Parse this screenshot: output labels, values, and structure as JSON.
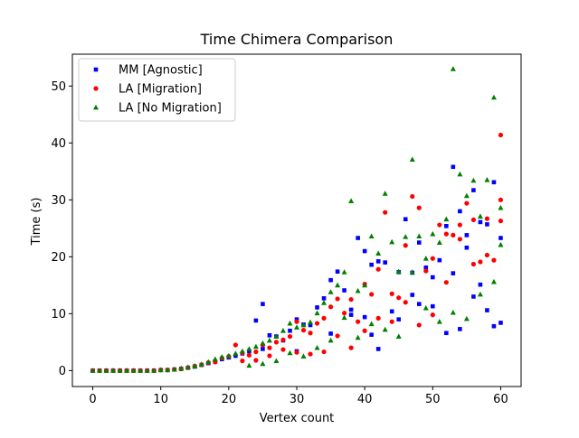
{
  "chart_data": {
    "type": "scatter",
    "title": "Time Chimera Comparison",
    "xlabel": "Vertex count",
    "ylabel": "Time (s)",
    "xlim": [
      -3,
      63
    ],
    "ylim": [
      -2.8,
      55.6
    ],
    "xticks": [
      0,
      10,
      20,
      30,
      40,
      50,
      60
    ],
    "yticks": [
      0,
      10,
      20,
      30,
      40,
      50
    ],
    "grid": false,
    "legend_position": "top-left",
    "series": [
      {
        "name": "MM [Agnostic]",
        "color": "#0000ff",
        "marker": "square",
        "points": [
          [
            0,
            0.0
          ],
          [
            1,
            0.0
          ],
          [
            2,
            0.0
          ],
          [
            3,
            0.0
          ],
          [
            4,
            0.0
          ],
          [
            5,
            0.0
          ],
          [
            6,
            0.0
          ],
          [
            7,
            0.0
          ],
          [
            8,
            0.0
          ],
          [
            9,
            0.0
          ],
          [
            10,
            0.1
          ],
          [
            11,
            0.1
          ],
          [
            12,
            0.2
          ],
          [
            13,
            0.3
          ],
          [
            14,
            0.5
          ],
          [
            15,
            0.7
          ],
          [
            16,
            1.0
          ],
          [
            17,
            1.3
          ],
          [
            18,
            1.6
          ],
          [
            19,
            2.0
          ],
          [
            20,
            2.3
          ],
          [
            21,
            2.6
          ],
          [
            22,
            3.0
          ],
          [
            23,
            3.4
          ],
          [
            24,
            8.8
          ],
          [
            25,
            11.7
          ],
          [
            26,
            6.2
          ],
          [
            27,
            6.0
          ],
          [
            28,
            5.3
          ],
          [
            29,
            7.0
          ],
          [
            30,
            9.0
          ],
          [
            31,
            8.1
          ],
          [
            32,
            8.0
          ],
          [
            33,
            11.1
          ],
          [
            34,
            12.7
          ],
          [
            35,
            15.9
          ],
          [
            36,
            17.4
          ],
          [
            37,
            14.1
          ],
          [
            38,
            10.7
          ],
          [
            39,
            23.3
          ],
          [
            40,
            21.0
          ],
          [
            41,
            18.6
          ],
          [
            42,
            19.2
          ],
          [
            43,
            19.0
          ],
          [
            44,
            10.4
          ],
          [
            45,
            17.3
          ],
          [
            46,
            26.6
          ],
          [
            47,
            17.2
          ],
          [
            48,
            22.5
          ],
          [
            49,
            18.1
          ],
          [
            50,
            16.4
          ],
          [
            51,
            19.4
          ],
          [
            52,
            25.4
          ],
          [
            53,
            35.8
          ],
          [
            54,
            28.0
          ],
          [
            55,
            23.8
          ],
          [
            56,
            31.7
          ],
          [
            57,
            26.1
          ],
          [
            58,
            25.7
          ],
          [
            59,
            33.1
          ],
          [
            60,
            23.3
          ],
          [
            25,
            3.8
          ],
          [
            30,
            3.4
          ],
          [
            35,
            6.5
          ],
          [
            38,
            9.8
          ],
          [
            40,
            9.4
          ],
          [
            42,
            3.8
          ],
          [
            45,
            9.0
          ],
          [
            48,
            11.7
          ],
          [
            50,
            11.3
          ],
          [
            52,
            6.6
          ],
          [
            54,
            7.3
          ],
          [
            56,
            13.0
          ],
          [
            58,
            10.6
          ],
          [
            59,
            7.8
          ],
          [
            60,
            8.4
          ],
          [
            57,
            15.1
          ],
          [
            55,
            21.6
          ],
          [
            53,
            17.1
          ],
          [
            47,
            13.3
          ],
          [
            41,
            6.3
          ]
        ]
      },
      {
        "name": "LA [Migration]",
        "color": "#ff0000",
        "marker": "circle",
        "points": [
          [
            0,
            0.0
          ],
          [
            1,
            0.0
          ],
          [
            2,
            0.0
          ],
          [
            3,
            0.0
          ],
          [
            4,
            0.0
          ],
          [
            5,
            0.0
          ],
          [
            6,
            0.0
          ],
          [
            7,
            0.0
          ],
          [
            8,
            0.0
          ],
          [
            9,
            0.0
          ],
          [
            10,
            0.1
          ],
          [
            11,
            0.1
          ],
          [
            12,
            0.2
          ],
          [
            13,
            0.3
          ],
          [
            14,
            0.5
          ],
          [
            15,
            0.8
          ],
          [
            16,
            1.0
          ],
          [
            17,
            1.4
          ],
          [
            18,
            1.5
          ],
          [
            19,
            2.2
          ],
          [
            20,
            2.5
          ],
          [
            21,
            4.5
          ],
          [
            22,
            3.1
          ],
          [
            23,
            2.7
          ],
          [
            24,
            3.3
          ],
          [
            25,
            4.5
          ],
          [
            26,
            4.0
          ],
          [
            27,
            5.0
          ],
          [
            28,
            5.4
          ],
          [
            29,
            6.0
          ],
          [
            30,
            8.6
          ],
          [
            31,
            7.1
          ],
          [
            32,
            6.6
          ],
          [
            33,
            8.3
          ],
          [
            34,
            9.2
          ],
          [
            35,
            11.2
          ],
          [
            36,
            12.6
          ],
          [
            37,
            10.1
          ],
          [
            38,
            12.5
          ],
          [
            39,
            8.6
          ],
          [
            40,
            15.2
          ],
          [
            41,
            13.4
          ],
          [
            42,
            17.8
          ],
          [
            43,
            27.8
          ],
          [
            44,
            13.5
          ],
          [
            45,
            12.8
          ],
          [
            46,
            22.0
          ],
          [
            47,
            30.6
          ],
          [
            48,
            28.6
          ],
          [
            49,
            17.5
          ],
          [
            50,
            19.7
          ],
          [
            51,
            25.6
          ],
          [
            52,
            24.0
          ],
          [
            53,
            23.8
          ],
          [
            54,
            25.6
          ],
          [
            55,
            29.4
          ],
          [
            56,
            26.5
          ],
          [
            57,
            19.1
          ],
          [
            58,
            26.7
          ],
          [
            59,
            19.4
          ],
          [
            60,
            41.4
          ],
          [
            60,
            30.0
          ],
          [
            60,
            26.3
          ],
          [
            58,
            20.3
          ],
          [
            56,
            18.7
          ],
          [
            54,
            23.1
          ],
          [
            52,
            15.5
          ],
          [
            50,
            9.8
          ],
          [
            48,
            8.0
          ],
          [
            46,
            12.0
          ],
          [
            44,
            8.6
          ],
          [
            42,
            9.2
          ],
          [
            40,
            7.0
          ],
          [
            38,
            4.0
          ],
          [
            36,
            6.1
          ],
          [
            34,
            3.3
          ],
          [
            32,
            2.9
          ],
          [
            30,
            3.2
          ],
          [
            28,
            3.7
          ],
          [
            26,
            2.6
          ],
          [
            24,
            1.8
          ],
          [
            22,
            1.7
          ]
        ]
      },
      {
        "name": "LA [No Migration]",
        "color": "#008000",
        "marker": "triangle",
        "points": [
          [
            0,
            0.0
          ],
          [
            1,
            0.0
          ],
          [
            2,
            0.0
          ],
          [
            3,
            0.0
          ],
          [
            4,
            0.0
          ],
          [
            5,
            0.0
          ],
          [
            6,
            0.0
          ],
          [
            7,
            0.0
          ],
          [
            8,
            0.0
          ],
          [
            9,
            0.0
          ],
          [
            10,
            0.1
          ],
          [
            11,
            0.1
          ],
          [
            12,
            0.2
          ],
          [
            13,
            0.4
          ],
          [
            14,
            0.6
          ],
          [
            15,
            0.8
          ],
          [
            16,
            1.1
          ],
          [
            17,
            1.5
          ],
          [
            18,
            2.0
          ],
          [
            19,
            2.4
          ],
          [
            20,
            2.6
          ],
          [
            21,
            3.0
          ],
          [
            22,
            3.4
          ],
          [
            23,
            3.8
          ],
          [
            24,
            4.2
          ],
          [
            25,
            4.8
          ],
          [
            26,
            5.3
          ],
          [
            27,
            6.0
          ],
          [
            28,
            7.0
          ],
          [
            29,
            8.3
          ],
          [
            30,
            7.6
          ],
          [
            31,
            8.0
          ],
          [
            32,
            8.5
          ],
          [
            33,
            10.1
          ],
          [
            34,
            11.9
          ],
          [
            35,
            13.8
          ],
          [
            36,
            15.0
          ],
          [
            37,
            17.3
          ],
          [
            38,
            29.8
          ],
          [
            39,
            14.0
          ],
          [
            40,
            15.0
          ],
          [
            41,
            23.6
          ],
          [
            42,
            20.6
          ],
          [
            43,
            31.1
          ],
          [
            44,
            22.6
          ],
          [
            45,
            17.4
          ],
          [
            46,
            23.5
          ],
          [
            47,
            37.1
          ],
          [
            48,
            23.6
          ],
          [
            49,
            19.7
          ],
          [
            50,
            24.0
          ],
          [
            51,
            22.5
          ],
          [
            52,
            26.6
          ],
          [
            53,
            53.0
          ],
          [
            54,
            34.5
          ],
          [
            55,
            30.7
          ],
          [
            56,
            33.4
          ],
          [
            57,
            27.1
          ],
          [
            58,
            33.5
          ],
          [
            59,
            48.0
          ],
          [
            60,
            28.6
          ],
          [
            60,
            22.1
          ],
          [
            59,
            15.6
          ],
          [
            57,
            13.4
          ],
          [
            55,
            9.1
          ],
          [
            53,
            10.2
          ],
          [
            51,
            8.6
          ],
          [
            49,
            11.0
          ],
          [
            47,
            17.3
          ],
          [
            45,
            6.0
          ],
          [
            43,
            7.2
          ],
          [
            41,
            8.2
          ],
          [
            39,
            5.8
          ],
          [
            37,
            9.3
          ],
          [
            35,
            5.3
          ],
          [
            33,
            4.0
          ],
          [
            31,
            2.5
          ],
          [
            29,
            3.1
          ],
          [
            27,
            1.7
          ],
          [
            25,
            1.2
          ],
          [
            23,
            0.9
          ]
        ]
      }
    ]
  }
}
